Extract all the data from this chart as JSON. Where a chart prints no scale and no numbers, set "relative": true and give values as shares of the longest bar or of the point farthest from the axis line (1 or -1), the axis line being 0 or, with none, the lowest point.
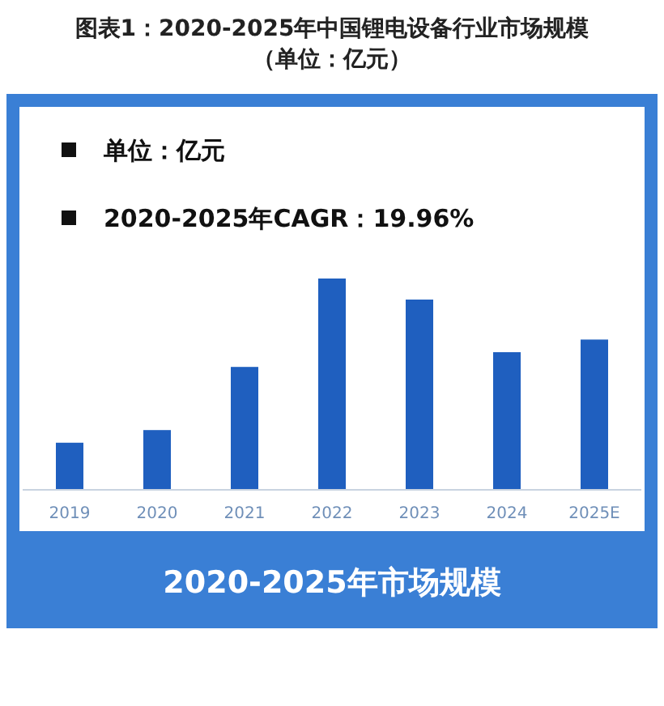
{
  "chart_data": {
    "type": "bar",
    "relative": true,
    "title": "图表1：2020-2025年中国锂电设备行业市场规模（单位：亿元）",
    "xlabel": "2020-2025年市场规模",
    "annotations": [
      "单位：亿元",
      "2020-2025年CAGR：19.96%"
    ],
    "categories": [
      "2019",
      "2020",
      "2021",
      "2022",
      "2023",
      "2024",
      "2025E"
    ],
    "values": [
      0.22,
      0.28,
      0.58,
      1,
      0.9,
      0.65,
      0.71
    ],
    "color": "#1f5fbf"
  }
}
